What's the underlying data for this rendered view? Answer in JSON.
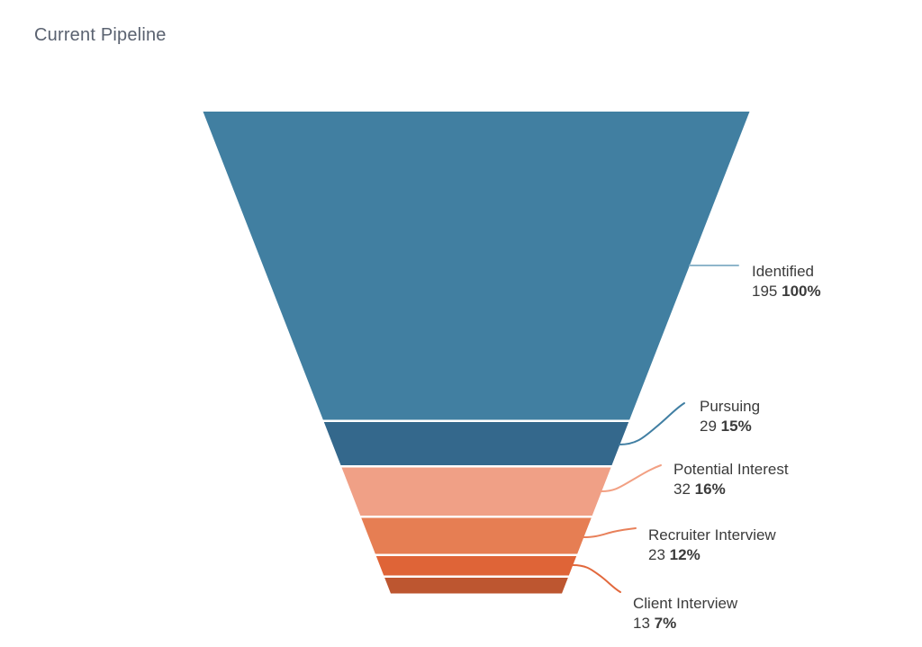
{
  "header": {
    "title": "Current Pipeline",
    "title_color": "#5a6270"
  },
  "chart_data": {
    "type": "funnel",
    "title": "Current Pipeline",
    "orientation": "vertical, widest at top, tapering down",
    "labels_position": "right, connected by leader lines",
    "legend": "none",
    "background": "#ffffff",
    "label_text_color": "#3b3b3b",
    "stages": [
      {
        "label": "Identified",
        "value": 195,
        "pct": "100%",
        "color": "#417fa1",
        "leader_color": "#8fb6cb"
      },
      {
        "label": "Pursuing",
        "value": 29,
        "pct": "15%",
        "color": "#34688c",
        "leader_color": "#417fa3"
      },
      {
        "label": "Potential Interest",
        "value": 32,
        "pct": "16%",
        "color": "#f0a086",
        "leader_color": "#f2a083"
      },
      {
        "label": "Recruiter Interview",
        "value": 23,
        "pct": "12%",
        "color": "#e67e53",
        "leader_color": "#e8805a"
      },
      {
        "label": "Client Interview",
        "value": 13,
        "pct": "7%",
        "color": "#df6437",
        "leader_color": "#e2683c"
      },
      {
        "label": "",
        "value": null,
        "pct": "",
        "color": "#bd5630",
        "label_hidden": true
      }
    ]
  }
}
